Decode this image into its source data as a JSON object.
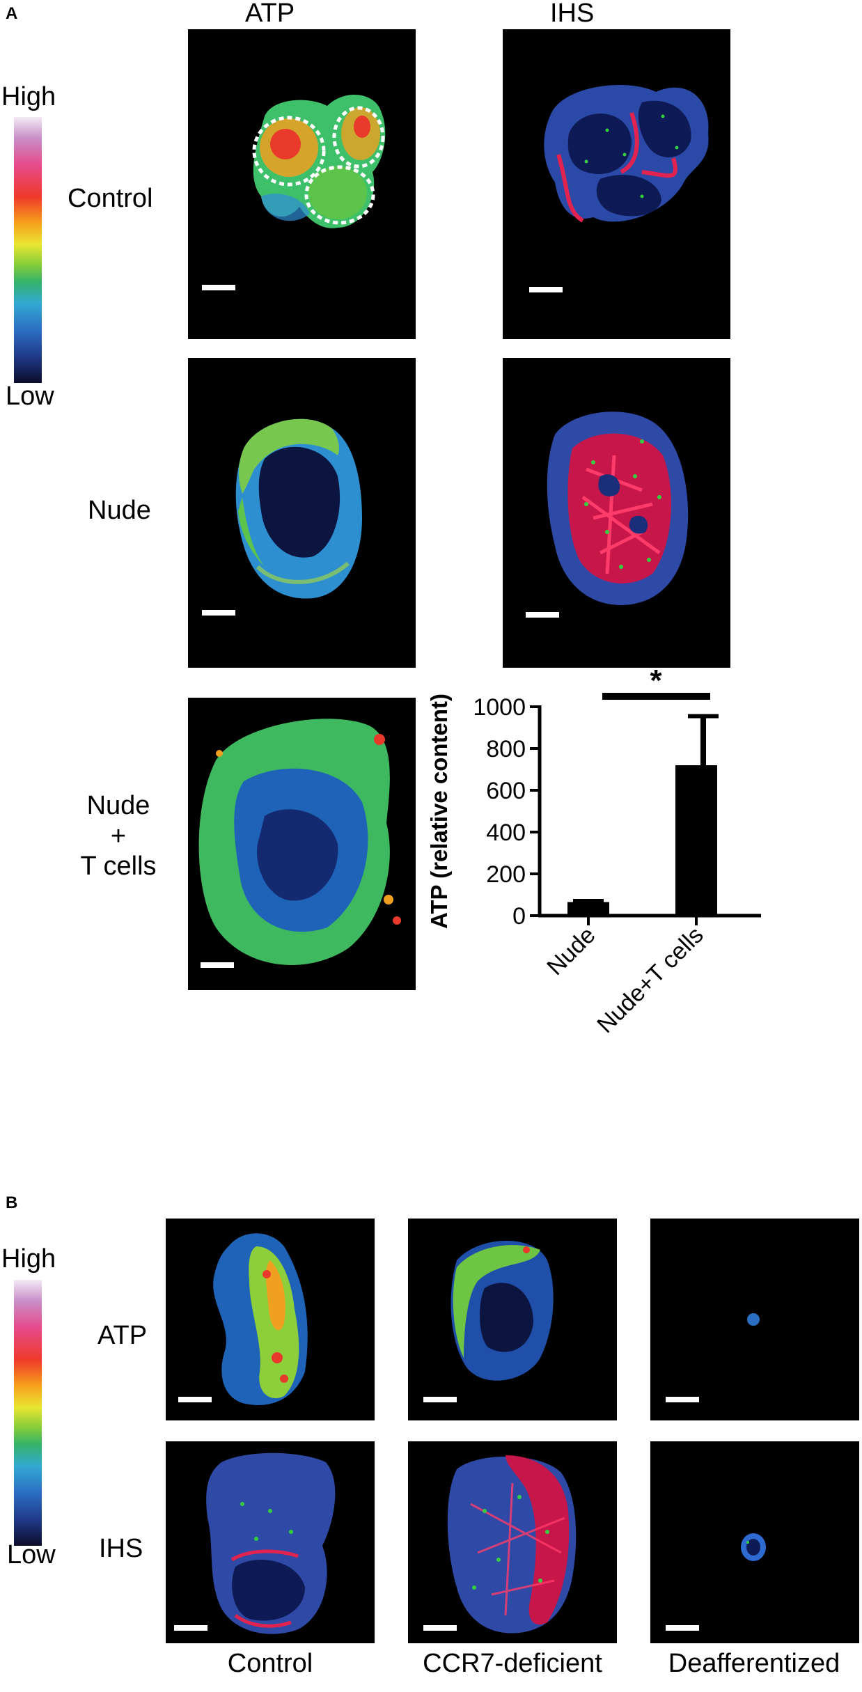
{
  "panel_a": {
    "letter": "A",
    "col_headers": {
      "atp": "ATP",
      "ihs": "IHS"
    },
    "colorbar": {
      "high": "High",
      "low": "Low"
    },
    "row_labels": {
      "control": "Control",
      "nude": "Nude",
      "nude_t": "Nude\n+\nT cells"
    }
  },
  "panel_b": {
    "letter": "B",
    "colorbar": {
      "high": "High",
      "low": "Low"
    },
    "row_labels": {
      "atp": "ATP",
      "ihs": "IHS"
    },
    "col_labels": {
      "control": "Control",
      "ccr7": "CCR7-deficient",
      "deaff": "Deafferentized"
    }
  },
  "chart_data": {
    "type": "bar",
    "categories": [
      "Nude",
      "Nude+T cells"
    ],
    "values": [
      65,
      720
    ],
    "errors": [
      5,
      235
    ],
    "ylabel": "ATP (relative content)",
    "ylim": [
      0,
      1000
    ],
    "yticks": [
      0,
      200,
      400,
      600,
      800,
      1000
    ],
    "significance": "*",
    "bar_color": "#000000"
  }
}
